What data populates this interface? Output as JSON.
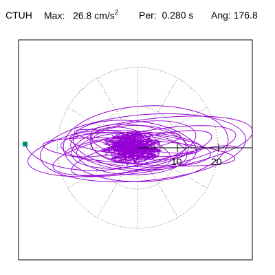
{
  "header": {
    "station": "CTUH",
    "max_label": "Max:",
    "max_value": "26.8",
    "max_unit": "cm/s",
    "max_exp": "2",
    "per_label": "Per:",
    "per_value": "0.280 s",
    "ang_label": "Ang:",
    "ang_value": "176.8"
  },
  "plot": {
    "ring_labels": [
      "10",
      "20"
    ],
    "colors": {
      "trace": "#9400d3",
      "grid": "#888888",
      "marker": "#008b74",
      "frame": "#000000"
    }
  }
}
